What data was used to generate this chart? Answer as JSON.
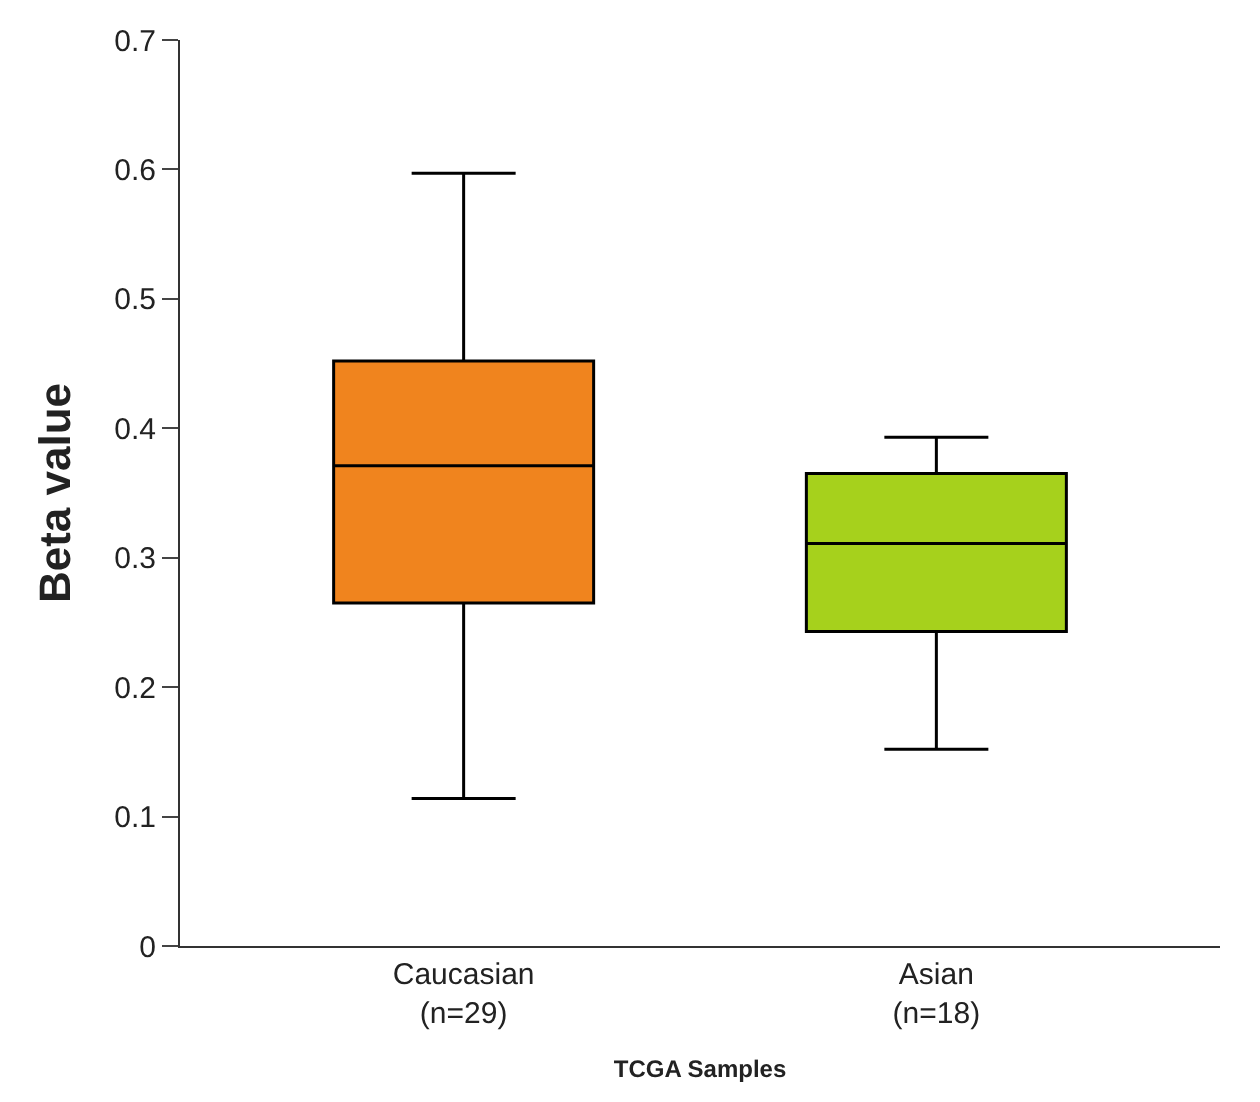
{
  "chart_data": {
    "type": "box",
    "xlabel": "TCGA Samples",
    "ylabel": "Beta value",
    "categories": [
      "Caucasian\n(n=29)",
      "Asian\n(n=18)"
    ],
    "colors": [
      "#f0841e",
      "#a6d11c"
    ],
    "boxes": [
      {
        "low": 0.114,
        "q1": 0.265,
        "median": 0.371,
        "q3": 0.452,
        "high": 0.597
      },
      {
        "low": 0.152,
        "q1": 0.243,
        "median": 0.311,
        "q3": 0.365,
        "high": 0.393
      }
    ],
    "ylim": [
      0,
      0.7
    ],
    "yticks": [
      0,
      0.1,
      0.2,
      0.3,
      0.4,
      0.5,
      0.6,
      0.7
    ]
  }
}
